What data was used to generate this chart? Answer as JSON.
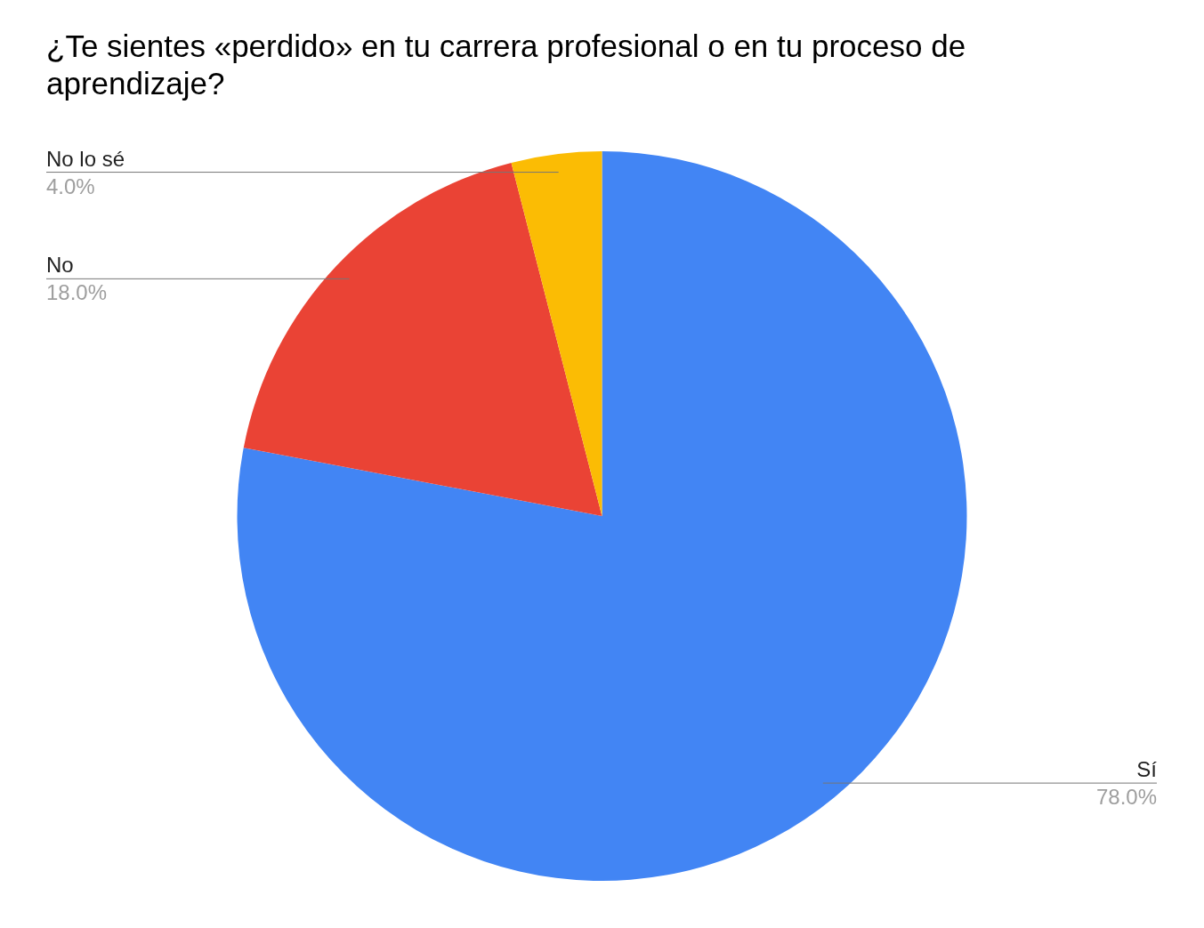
{
  "chart_data": {
    "type": "pie",
    "title": "¿Te sientes «perdido» en tu carrera profesional o en tu proceso de aprendizaje?",
    "categories": [
      "Sí",
      "No",
      "No lo sé"
    ],
    "values": [
      78,
      18,
      4
    ],
    "colors": [
      "#4285f4",
      "#ea4335",
      "#fbbc04"
    ],
    "value_labels": [
      "78.0%",
      "18.0%",
      "4.0%"
    ],
    "legend": false
  }
}
